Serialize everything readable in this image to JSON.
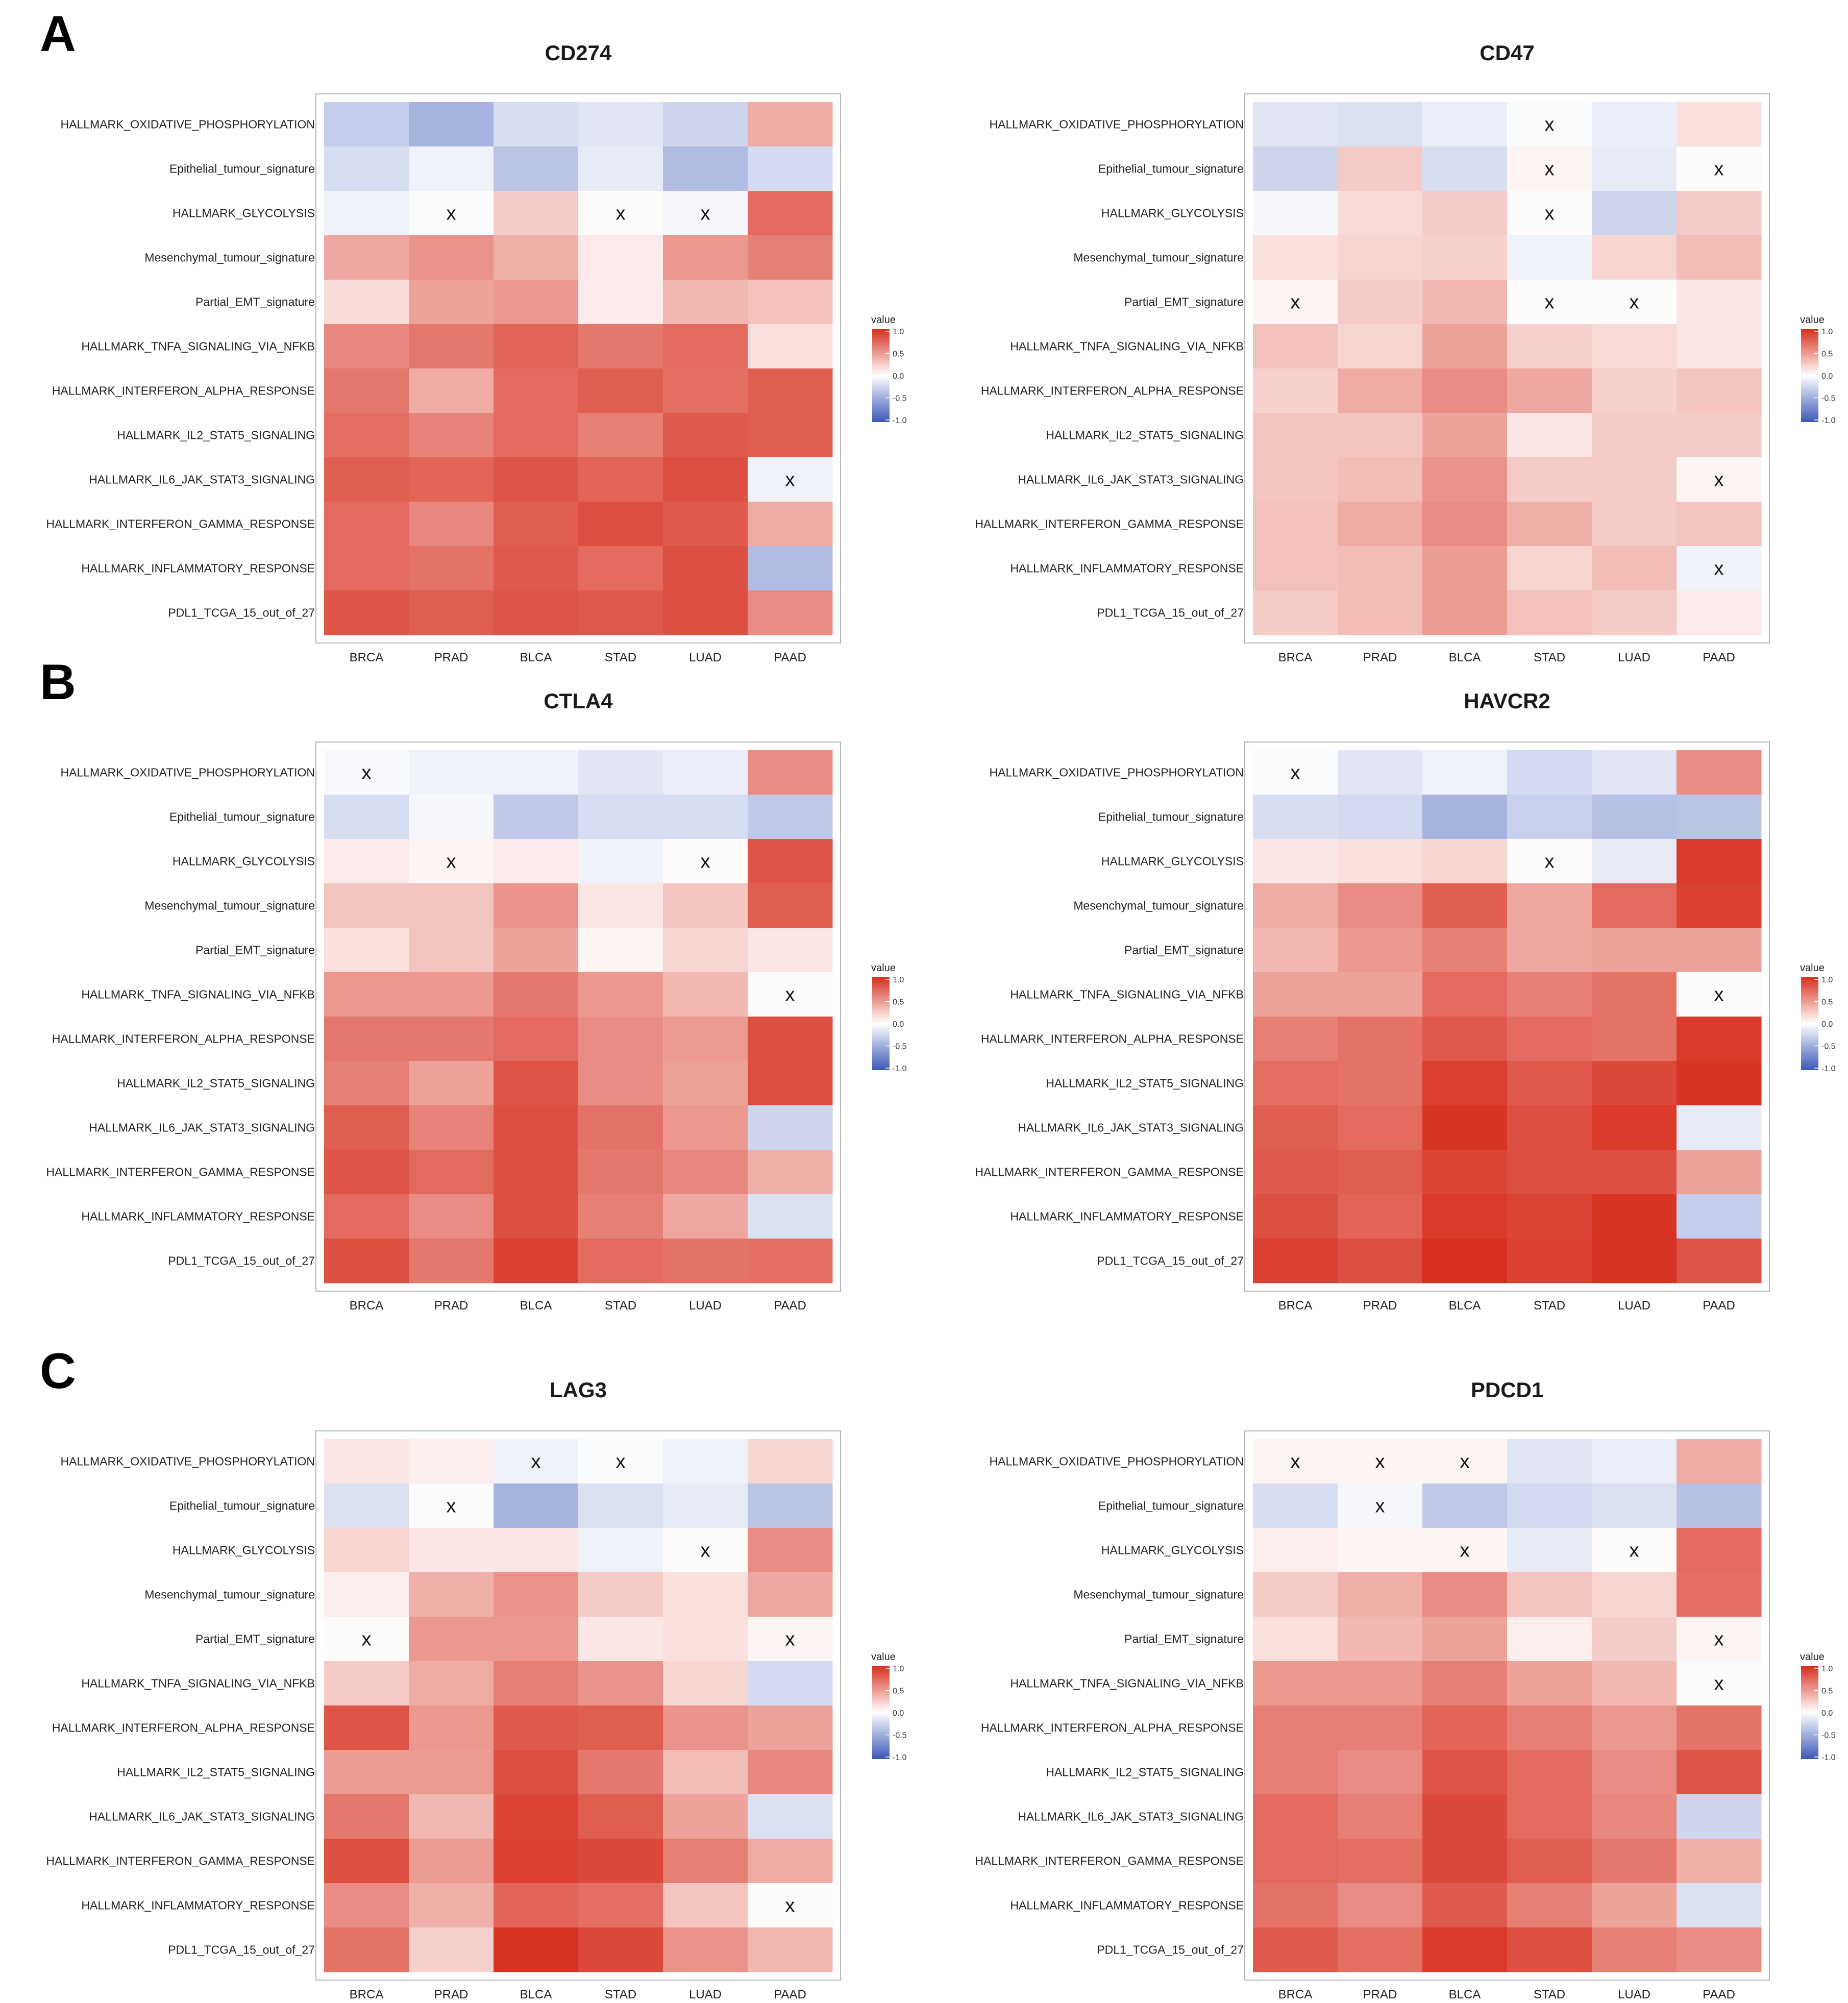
{
  "chart_data": {
    "type": "heatmap",
    "rows": [
      "HALLMARK_OXIDATIVE_PHOSPHORYLATION",
      "Epithelial_tumour_signature",
      "HALLMARK_GLYCOLYSIS",
      "Mesenchymal_tumour_signature",
      "Partial_EMT_signature",
      "HALLMARK_TNFA_SIGNALING_VIA_NFKB",
      "HALLMARK_INTERFERON_ALPHA_RESPONSE",
      "HALLMARK_IL2_STAT5_SIGNALING",
      "HALLMARK_IL6_JAK_STAT3_SIGNALING",
      "HALLMARK_INTERFERON_GAMMA_RESPONSE",
      "HALLMARK_INFLAMMATORY_RESPONSE",
      "PDL1_TCGA_15_out_of_27"
    ],
    "columns": [
      "BRCA",
      "PRAD",
      "BLCA",
      "STAD",
      "LUAD",
      "PAAD"
    ],
    "legend": {
      "title": "value",
      "ticks": [
        "1.0",
        "0.5",
        "0.0",
        "-0.5",
        "-1.0"
      ],
      "range": [
        -1,
        1
      ]
    },
    "colors": {
      "high": "#d7301f",
      "mid": "#ffffff",
      "low": "#3b58b8"
    },
    "insignificant_marker": "x",
    "panels": [
      {
        "letter": "A",
        "title": "CD274",
        "values": [
          [
            -0.3,
            -0.45,
            -0.2,
            -0.15,
            -0.25,
            0.4
          ],
          [
            -0.2,
            -0.08,
            -0.35,
            -0.12,
            -0.4,
            -0.22
          ],
          [
            -0.08,
            -0.02,
            0.25,
            0.02,
            -0.05,
            0.72
          ],
          [
            0.42,
            0.52,
            0.38,
            0.1,
            0.5,
            0.62
          ],
          [
            0.18,
            0.45,
            0.5,
            0.1,
            0.35,
            0.3
          ],
          [
            0.58,
            0.65,
            0.75,
            0.65,
            0.72,
            0.15
          ],
          [
            0.65,
            0.4,
            0.72,
            0.78,
            0.7,
            0.78
          ],
          [
            0.7,
            0.6,
            0.72,
            0.62,
            0.8,
            0.78
          ],
          [
            0.78,
            0.75,
            0.82,
            0.75,
            0.85,
            -0.08
          ],
          [
            0.72,
            0.58,
            0.78,
            0.85,
            0.8,
            0.4
          ],
          [
            0.72,
            0.68,
            0.8,
            0.72,
            0.85,
            -0.4
          ],
          [
            0.82,
            0.78,
            0.82,
            0.8,
            0.85,
            0.55
          ]
        ],
        "marks": [
          [
            0,
            0,
            0,
            0,
            0,
            0
          ],
          [
            0,
            0,
            0,
            0,
            0,
            0
          ],
          [
            0,
            1,
            0,
            1,
            1,
            0
          ],
          [
            0,
            0,
            0,
            0,
            0,
            0
          ],
          [
            0,
            0,
            0,
            0,
            0,
            0
          ],
          [
            0,
            0,
            0,
            0,
            0,
            0
          ],
          [
            0,
            0,
            0,
            0,
            0,
            0
          ],
          [
            0,
            0,
            0,
            0,
            0,
            0
          ],
          [
            0,
            0,
            0,
            0,
            0,
            1
          ],
          [
            0,
            0,
            0,
            0,
            0,
            0
          ],
          [
            0,
            0,
            0,
            0,
            0,
            0
          ],
          [
            0,
            0,
            0,
            0,
            0,
            0
          ]
        ]
      },
      {
        "letter": "",
        "title": "CD47",
        "values": [
          [
            -0.15,
            -0.18,
            -0.1,
            -0.02,
            -0.1,
            0.15
          ],
          [
            -0.25,
            0.25,
            -0.2,
            0.05,
            -0.12,
            0.02
          ],
          [
            -0.05,
            0.18,
            0.25,
            0.02,
            -0.25,
            0.25
          ],
          [
            0.15,
            0.2,
            0.22,
            -0.08,
            0.2,
            0.32
          ],
          [
            0.05,
            0.25,
            0.35,
            0.02,
            0.02,
            0.12
          ],
          [
            0.3,
            0.2,
            0.45,
            0.22,
            0.18,
            0.12
          ],
          [
            0.22,
            0.4,
            0.55,
            0.42,
            0.22,
            0.28
          ],
          [
            0.28,
            0.28,
            0.45,
            0.12,
            0.25,
            0.25
          ],
          [
            0.28,
            0.32,
            0.52,
            0.25,
            0.25,
            0.05
          ],
          [
            0.3,
            0.4,
            0.55,
            0.38,
            0.25,
            0.28
          ],
          [
            0.3,
            0.32,
            0.48,
            0.2,
            0.32,
            -0.08
          ],
          [
            0.25,
            0.32,
            0.48,
            0.3,
            0.25,
            0.1
          ]
        ],
        "marks": [
          [
            0,
            0,
            0,
            1,
            0,
            0
          ],
          [
            0,
            0,
            0,
            1,
            0,
            1
          ],
          [
            0,
            0,
            0,
            1,
            0,
            0
          ],
          [
            0,
            0,
            0,
            0,
            0,
            0
          ],
          [
            1,
            0,
            0,
            1,
            1,
            0
          ],
          [
            0,
            0,
            0,
            0,
            0,
            0
          ],
          [
            0,
            0,
            0,
            0,
            0,
            0
          ],
          [
            0,
            0,
            0,
            0,
            0,
            0
          ],
          [
            0,
            0,
            0,
            0,
            0,
            1
          ],
          [
            0,
            0,
            0,
            0,
            0,
            0
          ],
          [
            0,
            0,
            0,
            0,
            0,
            1
          ],
          [
            0,
            0,
            0,
            0,
            0,
            0
          ]
        ]
      },
      {
        "letter": "B",
        "title": "CTLA4",
        "values": [
          [
            -0.03,
            -0.08,
            -0.08,
            -0.15,
            -0.1,
            0.55
          ],
          [
            -0.2,
            -0.05,
            -0.32,
            -0.2,
            -0.2,
            -0.32
          ],
          [
            0.1,
            0.05,
            0.1,
            -0.08,
            0.02,
            0.82
          ],
          [
            0.28,
            0.28,
            0.52,
            0.12,
            0.28,
            0.78
          ],
          [
            0.15,
            0.28,
            0.45,
            0.05,
            0.2,
            0.12
          ],
          [
            0.5,
            0.5,
            0.65,
            0.5,
            0.35,
            0.02
          ],
          [
            0.65,
            0.65,
            0.72,
            0.55,
            0.48,
            0.85
          ],
          [
            0.62,
            0.45,
            0.82,
            0.55,
            0.45,
            0.85
          ],
          [
            0.78,
            0.6,
            0.85,
            0.68,
            0.5,
            -0.25
          ],
          [
            0.82,
            0.72,
            0.85,
            0.65,
            0.58,
            0.38
          ],
          [
            0.72,
            0.55,
            0.85,
            0.62,
            0.42,
            -0.18
          ],
          [
            0.85,
            0.65,
            0.92,
            0.72,
            0.68,
            0.7
          ]
        ],
        "marks": [
          [
            1,
            0,
            0,
            0,
            0,
            0
          ],
          [
            0,
            0,
            0,
            0,
            0,
            0
          ],
          [
            0,
            1,
            0,
            0,
            1,
            0
          ],
          [
            0,
            0,
            0,
            0,
            0,
            0
          ],
          [
            0,
            0,
            0,
            0,
            0,
            0
          ],
          [
            0,
            0,
            0,
            0,
            0,
            1
          ],
          [
            0,
            0,
            0,
            0,
            0,
            0
          ],
          [
            0,
            0,
            0,
            0,
            0,
            0
          ],
          [
            0,
            0,
            0,
            0,
            0,
            0
          ],
          [
            0,
            0,
            0,
            0,
            0,
            0
          ],
          [
            0,
            0,
            0,
            0,
            0,
            0
          ],
          [
            0,
            0,
            0,
            0,
            0,
            0
          ]
        ]
      },
      {
        "letter": "",
        "title": "HAVCR2",
        "values": [
          [
            -0.02,
            -0.15,
            -0.08,
            -0.22,
            -0.15,
            0.55
          ],
          [
            -0.2,
            -0.22,
            -0.45,
            -0.28,
            -0.38,
            -0.35
          ],
          [
            0.12,
            0.15,
            0.2,
            0.02,
            -0.12,
            0.95
          ],
          [
            0.4,
            0.55,
            0.78,
            0.42,
            0.72,
            0.92
          ],
          [
            0.35,
            0.5,
            0.62,
            0.42,
            0.45,
            0.45
          ],
          [
            0.45,
            0.45,
            0.72,
            0.62,
            0.68,
            0.02
          ],
          [
            0.62,
            0.68,
            0.8,
            0.72,
            0.68,
            0.95
          ],
          [
            0.7,
            0.68,
            0.92,
            0.8,
            0.88,
            0.98
          ],
          [
            0.78,
            0.72,
            0.98,
            0.85,
            0.95,
            -0.12
          ],
          [
            0.8,
            0.78,
            0.9,
            0.85,
            0.85,
            0.45
          ],
          [
            0.85,
            0.75,
            0.95,
            0.9,
            0.98,
            -0.3
          ],
          [
            0.92,
            0.85,
            1.0,
            0.92,
            0.98,
            0.82
          ]
        ],
        "marks": [
          [
            1,
            0,
            0,
            0,
            0,
            0
          ],
          [
            0,
            0,
            0,
            0,
            0,
            0
          ],
          [
            0,
            0,
            0,
            1,
            0,
            0
          ],
          [
            0,
            0,
            0,
            0,
            0,
            0
          ],
          [
            0,
            0,
            0,
            0,
            0,
            0
          ],
          [
            0,
            0,
            0,
            0,
            0,
            1
          ],
          [
            0,
            0,
            0,
            0,
            0,
            0
          ],
          [
            0,
            0,
            0,
            0,
            0,
            0
          ],
          [
            0,
            0,
            0,
            0,
            0,
            0
          ],
          [
            0,
            0,
            0,
            0,
            0,
            0
          ],
          [
            0,
            0,
            0,
            0,
            0,
            0
          ],
          [
            0,
            0,
            0,
            0,
            0,
            0
          ]
        ]
      },
      {
        "letter": "C",
        "title": "LAG3",
        "values": [
          [
            0.12,
            0.08,
            -0.08,
            -0.02,
            -0.08,
            0.2
          ],
          [
            -0.18,
            -0.02,
            -0.45,
            -0.18,
            -0.12,
            -0.35
          ],
          [
            0.2,
            0.12,
            0.12,
            -0.08,
            0.02,
            0.55
          ],
          [
            0.08,
            0.38,
            0.52,
            0.25,
            0.15,
            0.42
          ],
          [
            0.02,
            0.5,
            0.5,
            0.12,
            0.15,
            0.05
          ],
          [
            0.25,
            0.4,
            0.62,
            0.52,
            0.2,
            -0.22
          ],
          [
            0.82,
            0.5,
            0.8,
            0.78,
            0.52,
            0.45
          ],
          [
            0.48,
            0.48,
            0.85,
            0.65,
            0.32,
            0.58
          ],
          [
            0.65,
            0.35,
            0.9,
            0.78,
            0.45,
            -0.18
          ],
          [
            0.85,
            0.48,
            0.92,
            0.88,
            0.62,
            0.4
          ],
          [
            0.55,
            0.38,
            0.75,
            0.7,
            0.28,
            0.02
          ],
          [
            0.68,
            0.22,
            0.98,
            0.88,
            0.52,
            0.35
          ]
        ],
        "marks": [
          [
            0,
            0,
            1,
            1,
            0,
            0
          ],
          [
            0,
            1,
            0,
            0,
            0,
            0
          ],
          [
            0,
            0,
            0,
            0,
            1,
            0
          ],
          [
            0,
            0,
            0,
            0,
            0,
            0
          ],
          [
            1,
            0,
            0,
            0,
            0,
            1
          ],
          [
            0,
            0,
            0,
            0,
            0,
            0
          ],
          [
            0,
            0,
            0,
            0,
            0,
            0
          ],
          [
            0,
            0,
            0,
            0,
            0,
            0
          ],
          [
            0,
            0,
            0,
            0,
            0,
            0
          ],
          [
            0,
            0,
            0,
            0,
            0,
            0
          ],
          [
            0,
            0,
            0,
            0,
            0,
            1
          ],
          [
            0,
            0,
            0,
            0,
            0,
            0
          ]
        ]
      },
      {
        "letter": "",
        "title": "PDCD1",
        "values": [
          [
            0.05,
            0.05,
            0.05,
            -0.15,
            -0.1,
            0.4
          ],
          [
            -0.2,
            -0.05,
            -0.32,
            -0.22,
            -0.18,
            -0.38
          ],
          [
            0.08,
            0.05,
            0.05,
            -0.12,
            0.02,
            0.72
          ],
          [
            0.25,
            0.38,
            0.55,
            0.28,
            0.2,
            0.7
          ],
          [
            0.15,
            0.35,
            0.45,
            0.08,
            0.25,
            0.05
          ],
          [
            0.5,
            0.5,
            0.62,
            0.45,
            0.35,
            -0.02
          ],
          [
            0.62,
            0.62,
            0.75,
            0.62,
            0.5,
            0.68
          ],
          [
            0.62,
            0.55,
            0.82,
            0.72,
            0.55,
            0.82
          ],
          [
            0.72,
            0.62,
            0.88,
            0.72,
            0.58,
            -0.25
          ],
          [
            0.72,
            0.7,
            0.88,
            0.78,
            0.65,
            0.38
          ],
          [
            0.68,
            0.55,
            0.8,
            0.62,
            0.45,
            -0.18
          ],
          [
            0.8,
            0.7,
            0.95,
            0.85,
            0.62,
            0.55
          ]
        ],
        "marks": [
          [
            1,
            1,
            1,
            0,
            0,
            0
          ],
          [
            0,
            1,
            0,
            0,
            0,
            0
          ],
          [
            0,
            0,
            1,
            0,
            1,
            0
          ],
          [
            0,
            0,
            0,
            0,
            0,
            0
          ],
          [
            0,
            0,
            0,
            0,
            0,
            1
          ],
          [
            0,
            0,
            0,
            0,
            0,
            1
          ],
          [
            0,
            0,
            0,
            0,
            0,
            0
          ],
          [
            0,
            0,
            0,
            0,
            0,
            0
          ],
          [
            0,
            0,
            0,
            0,
            0,
            0
          ],
          [
            0,
            0,
            0,
            0,
            0,
            0
          ],
          [
            0,
            0,
            0,
            0,
            0,
            0
          ],
          [
            0,
            0,
            0,
            0,
            0,
            0
          ]
        ]
      }
    ]
  }
}
